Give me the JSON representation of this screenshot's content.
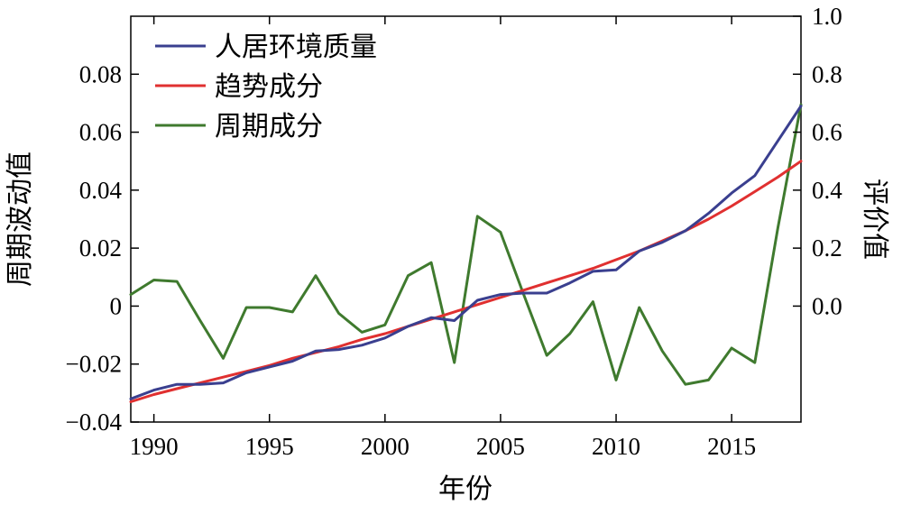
{
  "chart_data": {
    "type": "line",
    "xlabel": "年份",
    "ylabel_left": "周期波动值",
    "ylabel_right": "评价值",
    "xlim": [
      1989,
      2018
    ],
    "ylim_left": [
      -0.04,
      0.1
    ],
    "ylim_right": [
      -0.4,
      1.0
    ],
    "x_ticks": [
      1990,
      1995,
      2000,
      2005,
      2010,
      2015
    ],
    "y_ticks_left": [
      {
        "value": -0.04,
        "label": "−0.04"
      },
      {
        "value": -0.02,
        "label": "−0.02"
      },
      {
        "value": 0,
        "label": "0"
      },
      {
        "value": 0.02,
        "label": "0.02"
      },
      {
        "value": 0.04,
        "label": "0.04"
      },
      {
        "value": 0.06,
        "label": "0.06"
      },
      {
        "value": 0.08,
        "label": "0.08"
      }
    ],
    "y_ticks_right": [
      {
        "value": 0.0,
        "label": "0.0"
      },
      {
        "value": 0.2,
        "label": "0.2"
      },
      {
        "value": 0.4,
        "label": "0.4"
      },
      {
        "value": 0.6,
        "label": "0.6"
      },
      {
        "value": 0.8,
        "label": "0.8"
      },
      {
        "value": 1.0,
        "label": "1.0"
      }
    ],
    "legend_position": "top-left",
    "grid": false,
    "x": [
      1989,
      1990,
      1991,
      1992,
      1993,
      1994,
      1995,
      1996,
      1997,
      1998,
      1999,
      2000,
      2001,
      2002,
      2003,
      2004,
      2005,
      2006,
      2007,
      2008,
      2009,
      2010,
      2011,
      2012,
      2013,
      2014,
      2015,
      2016,
      2017,
      2018
    ],
    "series": [
      {
        "name": "人居环境质量",
        "axis": "right",
        "color": "#3a3f8f",
        "values": [
          -0.32,
          -0.29,
          -0.27,
          -0.27,
          -0.265,
          -0.23,
          -0.21,
          -0.19,
          -0.155,
          -0.15,
          -0.135,
          -0.11,
          -0.07,
          -0.04,
          -0.05,
          0.02,
          0.04,
          0.045,
          0.045,
          0.08,
          0.12,
          0.125,
          0.19,
          0.22,
          0.26,
          0.32,
          0.39,
          0.45,
          0.57,
          0.69
        ]
      },
      {
        "name": "趋势成分",
        "axis": "right",
        "color": "#e03030",
        "values": [
          -0.33,
          -0.305,
          -0.285,
          -0.265,
          -0.245,
          -0.225,
          -0.205,
          -0.18,
          -0.16,
          -0.14,
          -0.115,
          -0.095,
          -0.07,
          -0.045,
          -0.02,
          0.005,
          0.03,
          0.055,
          0.08,
          0.105,
          0.13,
          0.16,
          0.19,
          0.225,
          0.26,
          0.3,
          0.345,
          0.395,
          0.445,
          0.5
        ]
      },
      {
        "name": "周期成分",
        "axis": "left",
        "color": "#3f7a2e",
        "values": [
          0.004,
          0.009,
          0.0085,
          -0.005,
          -0.018,
          -0.0005,
          -0.0005,
          -0.002,
          0.0105,
          -0.0025,
          -0.009,
          -0.0065,
          0.0105,
          0.015,
          -0.0195,
          0.031,
          0.0255,
          0.004,
          -0.017,
          -0.0095,
          0.0015,
          -0.0255,
          -0.0005,
          -0.0155,
          -0.027,
          -0.0255,
          -0.0145,
          -0.0195,
          0.027,
          0.0695
        ]
      }
    ]
  }
}
